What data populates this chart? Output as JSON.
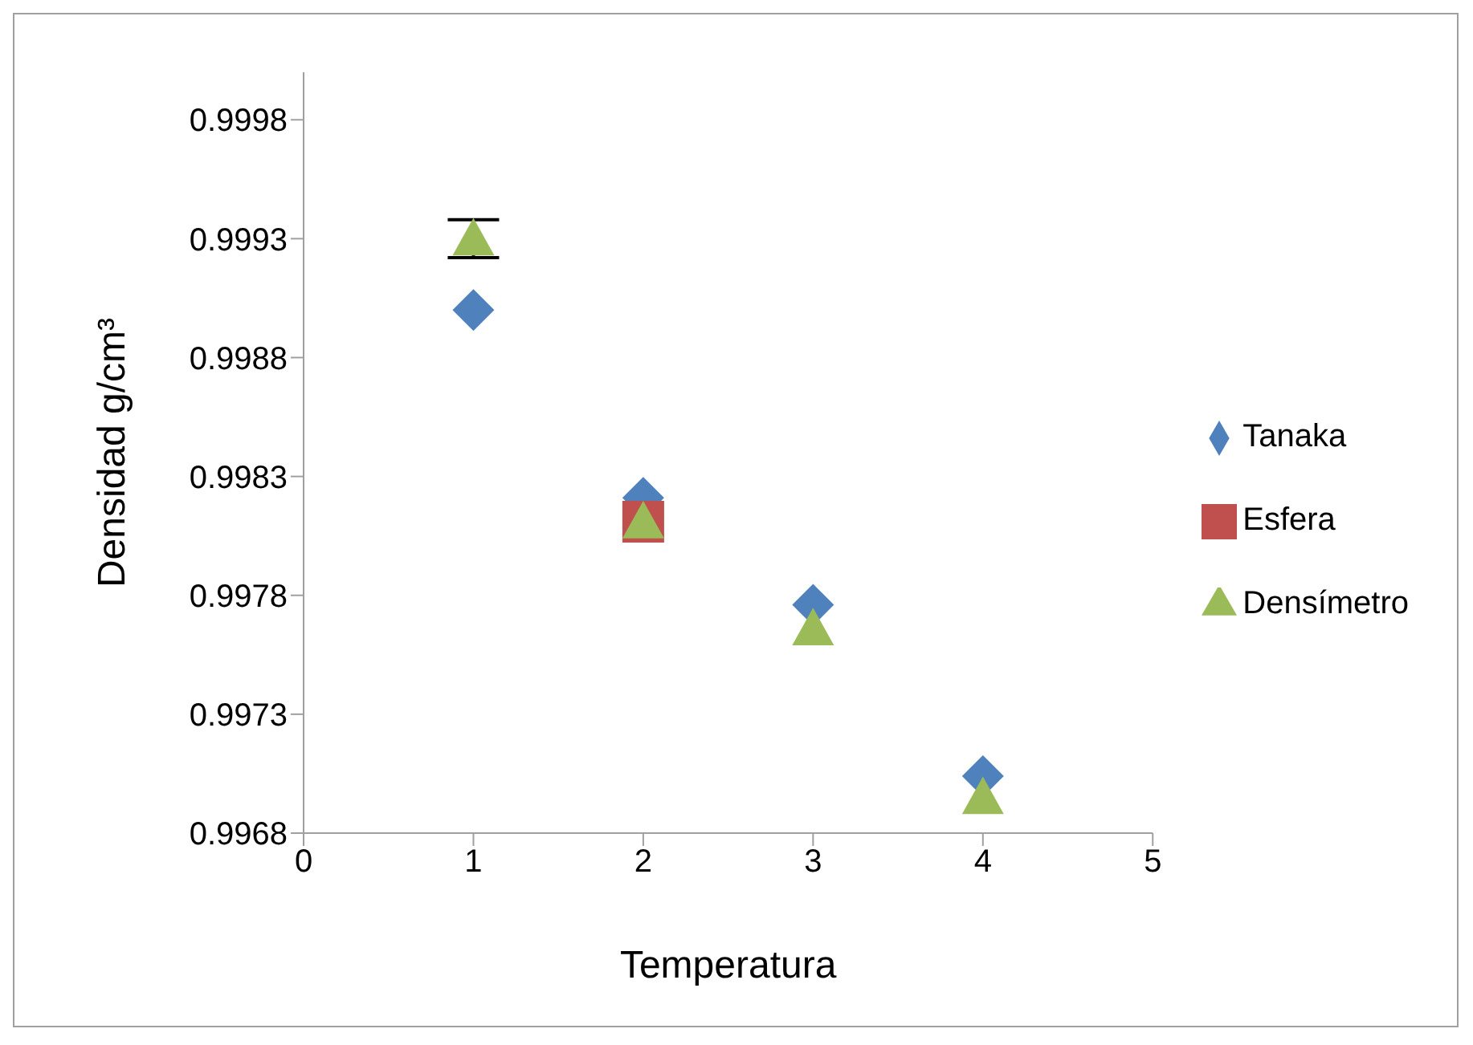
{
  "chart_data": {
    "type": "scatter",
    "xlabel": "Temperatura",
    "ylabel": "Densidad  g/cm³",
    "x": [
      1,
      2,
      3,
      4
    ],
    "series": [
      {
        "name": "Tanaka",
        "color": "#4f81bd",
        "marker": "diamond",
        "values": [
          0.999,
          0.99821,
          0.99776,
          0.99704
        ]
      },
      {
        "name": "Esfera",
        "color": "#c0504d",
        "marker": "square",
        "values": [
          null,
          0.99811,
          null,
          null
        ]
      },
      {
        "name": "Densímetro",
        "color": "#9bbb59",
        "marker": "triangle",
        "values": [
          0.9993,
          0.99811,
          0.99766,
          0.99695
        ],
        "errors": [
          8e-05,
          null,
          null,
          null
        ]
      }
    ],
    "xlim": [
      0,
      5
    ],
    "xticks": [
      0,
      1,
      2,
      3,
      4,
      5
    ],
    "ylim": [
      0.9968,
      1.0
    ],
    "yticks": [
      0.9968,
      0.9973,
      0.9978,
      0.9983,
      0.9988,
      0.9993,
      0.9998
    ],
    "grid": false,
    "legend": "right"
  }
}
